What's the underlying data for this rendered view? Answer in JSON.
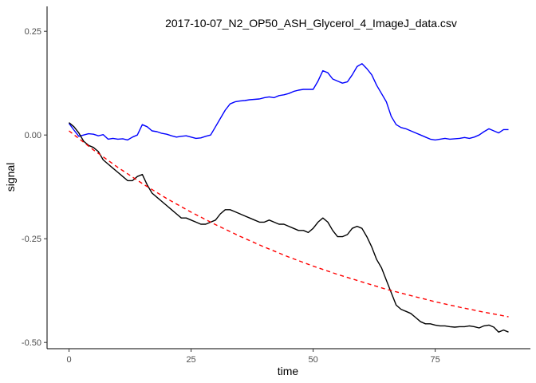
{
  "chart_data": {
    "type": "line",
    "title": "2017-10-07_N2_OP50_ASH_Glycerol_4_ImageJ_data.csv",
    "xlabel": "time",
    "ylabel": "signal",
    "xlim": [
      -4.5,
      94.5
    ],
    "ylim": [
      -0.515,
      0.31
    ],
    "x_ticks": [
      0,
      25,
      50,
      75
    ],
    "x_tick_labels": [
      "0",
      "25",
      "50",
      "75"
    ],
    "y_ticks": [
      -0.5,
      -0.25,
      0.0,
      0.25
    ],
    "y_tick_labels": [
      "-0.50",
      "-0.25",
      "0.00",
      "0.25"
    ],
    "grid": false,
    "series": [
      {
        "color": "#0000ff",
        "dash": "solid",
        "x": [
          0,
          1,
          2,
          3,
          4,
          5,
          6,
          7,
          8,
          9,
          10,
          11,
          12,
          13,
          14,
          15,
          16,
          17,
          18,
          19,
          20,
          21,
          22,
          23,
          24,
          25,
          26,
          27,
          28,
          29,
          30,
          31,
          32,
          33,
          34,
          35,
          36,
          37,
          38,
          39,
          40,
          41,
          42,
          43,
          44,
          45,
          46,
          47,
          48,
          49,
          50,
          51,
          52,
          53,
          54,
          55,
          56,
          57,
          58,
          59,
          60,
          61,
          62,
          63,
          64,
          65,
          66,
          67,
          68,
          69,
          70,
          71,
          72,
          73,
          74,
          75,
          76,
          77,
          78,
          79,
          80,
          81,
          82,
          83,
          84,
          85,
          86,
          87,
          88,
          89,
          90
        ],
        "y": [
          0.028,
          0.012,
          -0.003,
          0.0,
          0.003,
          0.002,
          -0.002,
          0.001,
          -0.01,
          -0.008,
          -0.01,
          -0.009,
          -0.012,
          -0.005,
          0.0,
          0.025,
          0.02,
          0.01,
          0.008,
          0.004,
          0.002,
          -0.002,
          -0.005,
          -0.003,
          -0.002,
          -0.005,
          -0.008,
          -0.007,
          -0.003,
          0.0,
          0.02,
          0.04,
          0.06,
          0.075,
          0.08,
          0.082,
          0.083,
          0.085,
          0.086,
          0.087,
          0.09,
          0.092,
          0.09,
          0.095,
          0.097,
          0.1,
          0.105,
          0.108,
          0.11,
          0.11,
          0.11,
          0.13,
          0.155,
          0.15,
          0.135,
          0.13,
          0.125,
          0.128,
          0.145,
          0.165,
          0.172,
          0.16,
          0.145,
          0.12,
          0.1,
          0.08,
          0.045,
          0.025,
          0.018,
          0.015,
          0.01,
          0.005,
          0.0,
          -0.005,
          -0.01,
          -0.012,
          -0.01,
          -0.008,
          -0.01,
          -0.009,
          -0.008,
          -0.006,
          -0.008,
          -0.005,
          0.0,
          0.008,
          0.015,
          0.01,
          0.005,
          0.013,
          0.013
        ]
      },
      {
        "color": "#000000",
        "dash": "solid",
        "x": [
          0,
          1,
          2,
          3,
          4,
          5,
          6,
          7,
          8,
          9,
          10,
          11,
          12,
          13,
          14,
          15,
          16,
          17,
          18,
          19,
          20,
          21,
          22,
          23,
          24,
          25,
          26,
          27,
          28,
          29,
          30,
          31,
          32,
          33,
          34,
          35,
          36,
          37,
          38,
          39,
          40,
          41,
          42,
          43,
          44,
          45,
          46,
          47,
          48,
          49,
          50,
          51,
          52,
          53,
          54,
          55,
          56,
          57,
          58,
          59,
          60,
          61,
          62,
          63,
          64,
          65,
          66,
          67,
          68,
          69,
          70,
          71,
          72,
          73,
          74,
          75,
          76,
          77,
          78,
          79,
          80,
          81,
          82,
          83,
          84,
          85,
          86,
          87,
          88,
          89,
          90
        ],
        "y": [
          0.03,
          0.02,
          0.005,
          -0.015,
          -0.025,
          -0.03,
          -0.04,
          -0.06,
          -0.07,
          -0.08,
          -0.09,
          -0.1,
          -0.11,
          -0.11,
          -0.1,
          -0.095,
          -0.12,
          -0.14,
          -0.15,
          -0.16,
          -0.17,
          -0.18,
          -0.19,
          -0.2,
          -0.2,
          -0.205,
          -0.21,
          -0.215,
          -0.215,
          -0.21,
          -0.205,
          -0.19,
          -0.18,
          -0.18,
          -0.185,
          -0.19,
          -0.195,
          -0.2,
          -0.205,
          -0.21,
          -0.21,
          -0.205,
          -0.21,
          -0.215,
          -0.215,
          -0.22,
          -0.225,
          -0.23,
          -0.23,
          -0.235,
          -0.225,
          -0.21,
          -0.2,
          -0.21,
          -0.23,
          -0.245,
          -0.245,
          -0.24,
          -0.225,
          -0.22,
          -0.225,
          -0.245,
          -0.27,
          -0.3,
          -0.32,
          -0.35,
          -0.38,
          -0.41,
          -0.42,
          -0.425,
          -0.43,
          -0.44,
          -0.45,
          -0.455,
          -0.455,
          -0.458,
          -0.46,
          -0.46,
          -0.462,
          -0.463,
          -0.462,
          -0.462,
          -0.46,
          -0.462,
          -0.465,
          -0.46,
          -0.458,
          -0.463,
          -0.475,
          -0.47,
          -0.475
        ]
      },
      {
        "color": "#ff0000",
        "dash": "dashed",
        "x": [
          0,
          5,
          10,
          15,
          20,
          25,
          30,
          35,
          40,
          45,
          50,
          55,
          60,
          65,
          70,
          75,
          80,
          85,
          90
        ],
        "y": [
          0.01,
          -0.036,
          -0.078,
          -0.117,
          -0.153,
          -0.186,
          -0.216,
          -0.244,
          -0.27,
          -0.294,
          -0.316,
          -0.336,
          -0.354,
          -0.372,
          -0.387,
          -0.402,
          -0.415,
          -0.427,
          -0.438
        ]
      }
    ]
  }
}
